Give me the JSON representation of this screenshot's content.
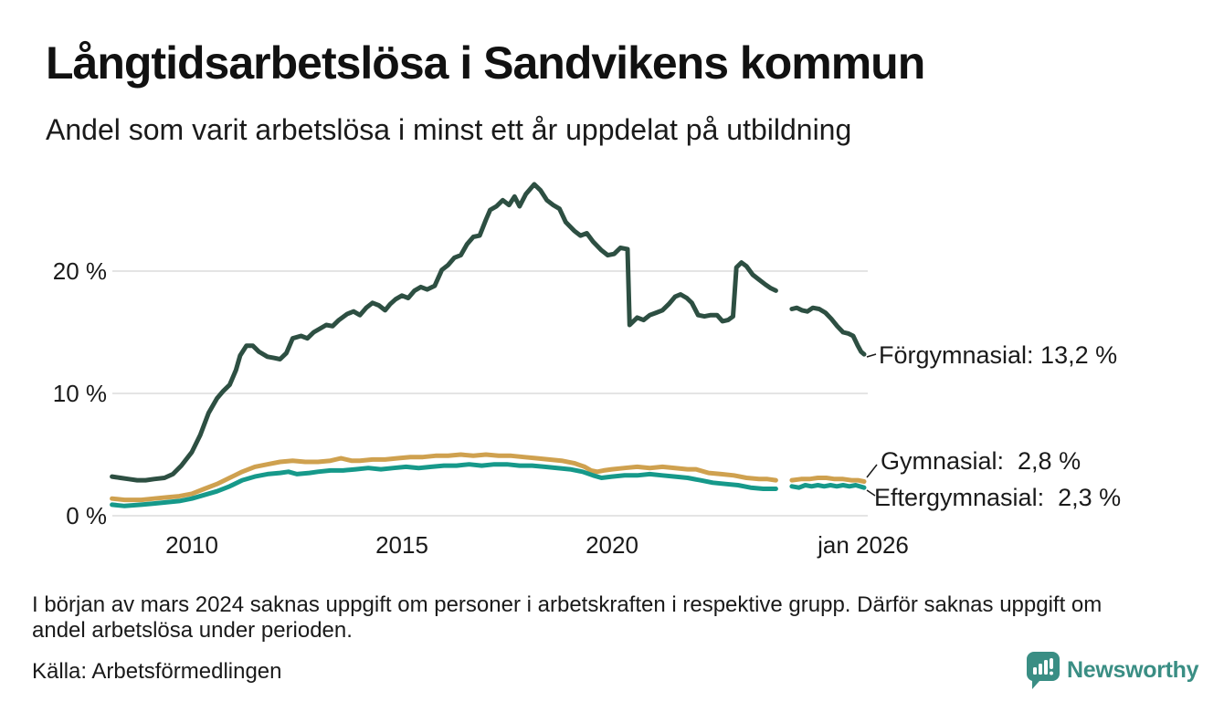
{
  "header": {
    "title": "Långtidsarbetslösa i Sandvikens kommun",
    "subtitle": "Andel som varit arbetslösa i minst ett år uppdelat på utbildning"
  },
  "footer": {
    "note_line1": "I början av mars 2024 saknas uppgift om personer i arbetskraften i respektive grupp. Därför saknas uppgift om",
    "note_line2": "andel arbetslösa under perioden.",
    "source": "Källa: Arbetsförmedlingen"
  },
  "branding": {
    "logo_text": "Newsworthy",
    "logo_color": "#3a8e84",
    "logo_icon": "newsworthy-speech-bubble-bar-chart-icon"
  },
  "chart_data": {
    "type": "line",
    "title": "Långtidsarbetslösa i Sandvikens kommun",
    "subtitle": "Andel som varit arbetslösa i minst ett år uppdelat på utbildning",
    "xlabel": "",
    "ylabel": "",
    "xlim": [
      2008.1,
      2026.0
    ],
    "ylim": [
      0,
      28.5
    ],
    "grid": "horizontal",
    "grid_color": "#e4e4e4",
    "legend_position": "end-of-line-labels",
    "data_gap_x": [
      2023.9,
      2024.28
    ],
    "y_ticks": [
      {
        "value": 20,
        "label": "20 %"
      },
      {
        "value": 10,
        "label": "10 %"
      },
      {
        "value": 0,
        "label": "0 %"
      }
    ],
    "x_ticks": [
      {
        "year": 2010,
        "label": "2010"
      },
      {
        "year": 2015,
        "label": "2015"
      },
      {
        "year": 2020,
        "label": "2020"
      },
      {
        "year": 2026,
        "label": "jan 2026"
      }
    ],
    "series": [
      {
        "name": "Förgymnasial",
        "color": "#2d4f42",
        "end_value": "13,2 %",
        "end_label": "Förgymnasial: 13,2 %",
        "segments": [
          [
            [
              2008.1,
              3.2
            ],
            [
              2008.3,
              3.1
            ],
            [
              2008.5,
              3.0
            ],
            [
              2008.7,
              2.9
            ],
            [
              2008.9,
              2.9
            ],
            [
              2009.1,
              3.0
            ],
            [
              2009.35,
              3.1
            ],
            [
              2009.55,
              3.4
            ],
            [
              2009.75,
              4.1
            ],
            [
              2010.0,
              5.2
            ],
            [
              2010.2,
              6.6
            ],
            [
              2010.4,
              8.4
            ],
            [
              2010.6,
              9.6
            ],
            [
              2010.75,
              10.2
            ],
            [
              2010.9,
              10.7
            ],
            [
              2011.05,
              11.9
            ],
            [
              2011.15,
              13.1
            ],
            [
              2011.3,
              13.9
            ],
            [
              2011.45,
              13.9
            ],
            [
              2011.6,
              13.4
            ],
            [
              2011.8,
              13.0
            ],
            [
              2011.95,
              12.9
            ],
            [
              2012.1,
              12.8
            ],
            [
              2012.25,
              13.3
            ],
            [
              2012.4,
              14.5
            ],
            [
              2012.6,
              14.7
            ],
            [
              2012.75,
              14.5
            ],
            [
              2012.9,
              15.0
            ],
            [
              2013.05,
              15.3
            ],
            [
              2013.2,
              15.6
            ],
            [
              2013.35,
              15.5
            ],
            [
              2013.5,
              16.0
            ],
            [
              2013.7,
              16.5
            ],
            [
              2013.85,
              16.7
            ],
            [
              2014.0,
              16.4
            ],
            [
              2014.15,
              17.0
            ],
            [
              2014.3,
              17.4
            ],
            [
              2014.45,
              17.2
            ],
            [
              2014.6,
              16.8
            ],
            [
              2014.72,
              17.3
            ],
            [
              2014.85,
              17.7
            ],
            [
              2015.0,
              18.0
            ],
            [
              2015.15,
              17.8
            ],
            [
              2015.3,
              18.4
            ],
            [
              2015.45,
              18.7
            ],
            [
              2015.6,
              18.5
            ],
            [
              2015.78,
              18.8
            ],
            [
              2015.95,
              20.1
            ],
            [
              2016.1,
              20.5
            ],
            [
              2016.25,
              21.1
            ],
            [
              2016.4,
              21.3
            ],
            [
              2016.55,
              22.2
            ],
            [
              2016.7,
              22.8
            ],
            [
              2016.85,
              22.9
            ],
            [
              2017.0,
              24.2
            ],
            [
              2017.1,
              25.0
            ],
            [
              2017.25,
              25.3
            ],
            [
              2017.4,
              25.8
            ],
            [
              2017.55,
              25.4
            ],
            [
              2017.68,
              26.1
            ],
            [
              2017.8,
              25.3
            ],
            [
              2017.95,
              26.3
            ],
            [
              2018.15,
              27.1
            ],
            [
              2018.3,
              26.6
            ],
            [
              2018.45,
              25.8
            ],
            [
              2018.6,
              25.4
            ],
            [
              2018.75,
              25.1
            ],
            [
              2018.9,
              24.0
            ],
            [
              2019.1,
              23.3
            ],
            [
              2019.25,
              22.9
            ],
            [
              2019.4,
              23.1
            ],
            [
              2019.55,
              22.4
            ],
            [
              2019.75,
              21.7
            ],
            [
              2019.9,
              21.3
            ],
            [
              2020.05,
              21.4
            ],
            [
              2020.2,
              21.9
            ],
            [
              2020.37,
              21.8
            ],
            [
              2020.42,
              15.6
            ],
            [
              2020.6,
              16.2
            ],
            [
              2020.75,
              16.0
            ],
            [
              2020.9,
              16.4
            ],
            [
              2021.05,
              16.6
            ],
            [
              2021.2,
              16.8
            ],
            [
              2021.35,
              17.3
            ],
            [
              2021.5,
              17.9
            ],
            [
              2021.63,
              18.1
            ],
            [
              2021.78,
              17.8
            ],
            [
              2021.9,
              17.4
            ],
            [
              2022.05,
              16.4
            ],
            [
              2022.2,
              16.3
            ],
            [
              2022.35,
              16.4
            ],
            [
              2022.5,
              16.4
            ],
            [
              2022.63,
              15.9
            ],
            [
              2022.76,
              16.0
            ],
            [
              2022.88,
              16.3
            ],
            [
              2022.96,
              20.3
            ],
            [
              2023.08,
              20.7
            ],
            [
              2023.2,
              20.4
            ],
            [
              2023.35,
              19.7
            ],
            [
              2023.5,
              19.3
            ],
            [
              2023.65,
              18.9
            ],
            [
              2023.78,
              18.6
            ],
            [
              2023.9,
              18.4
            ]
          ],
          [
            [
              2024.28,
              16.9
            ],
            [
              2024.4,
              17.0
            ],
            [
              2024.52,
              16.8
            ],
            [
              2024.65,
              16.7
            ],
            [
              2024.78,
              17.0
            ],
            [
              2024.93,
              16.9
            ],
            [
              2025.08,
              16.6
            ],
            [
              2025.22,
              16.1
            ],
            [
              2025.36,
              15.5
            ],
            [
              2025.5,
              15.0
            ],
            [
              2025.62,
              14.9
            ],
            [
              2025.74,
              14.7
            ],
            [
              2025.85,
              13.9
            ],
            [
              2025.93,
              13.4
            ],
            [
              2026.0,
              13.2
            ]
          ]
        ]
      },
      {
        "name": "Gymnasial",
        "color": "#cfa14f",
        "end_value": "2,8 %",
        "end_label": "Gymnasial:  2,8 %",
        "segments": [
          [
            [
              2008.1,
              1.4
            ],
            [
              2008.4,
              1.3
            ],
            [
              2008.8,
              1.3
            ],
            [
              2009.1,
              1.4
            ],
            [
              2009.4,
              1.5
            ],
            [
              2009.7,
              1.6
            ],
            [
              2010.0,
              1.8
            ],
            [
              2010.3,
              2.2
            ],
            [
              2010.6,
              2.6
            ],
            [
              2010.9,
              3.1
            ],
            [
              2011.2,
              3.6
            ],
            [
              2011.5,
              4.0
            ],
            [
              2011.8,
              4.2
            ],
            [
              2012.1,
              4.4
            ],
            [
              2012.4,
              4.5
            ],
            [
              2012.7,
              4.4
            ],
            [
              2013.0,
              4.4
            ],
            [
              2013.3,
              4.5
            ],
            [
              2013.55,
              4.7
            ],
            [
              2013.8,
              4.5
            ],
            [
              2014.0,
              4.5
            ],
            [
              2014.3,
              4.6
            ],
            [
              2014.6,
              4.6
            ],
            [
              2014.9,
              4.7
            ],
            [
              2015.2,
              4.8
            ],
            [
              2015.5,
              4.8
            ],
            [
              2015.8,
              4.9
            ],
            [
              2016.1,
              4.9
            ],
            [
              2016.4,
              5.0
            ],
            [
              2016.7,
              4.9
            ],
            [
              2017.0,
              5.0
            ],
            [
              2017.3,
              4.9
            ],
            [
              2017.6,
              4.9
            ],
            [
              2017.9,
              4.8
            ],
            [
              2018.2,
              4.7
            ],
            [
              2018.5,
              4.6
            ],
            [
              2018.8,
              4.5
            ],
            [
              2019.1,
              4.3
            ],
            [
              2019.35,
              4.0
            ],
            [
              2019.5,
              3.7
            ],
            [
              2019.65,
              3.6
            ],
            [
              2019.8,
              3.7
            ],
            [
              2020.0,
              3.8
            ],
            [
              2020.3,
              3.9
            ],
            [
              2020.6,
              4.0
            ],
            [
              2020.9,
              3.9
            ],
            [
              2021.2,
              4.0
            ],
            [
              2021.5,
              3.9
            ],
            [
              2021.8,
              3.8
            ],
            [
              2022.0,
              3.8
            ],
            [
              2022.3,
              3.5
            ],
            [
              2022.6,
              3.4
            ],
            [
              2022.9,
              3.3
            ],
            [
              2023.2,
              3.1
            ],
            [
              2023.5,
              3.0
            ],
            [
              2023.7,
              3.0
            ],
            [
              2023.9,
              2.9
            ]
          ],
          [
            [
              2024.28,
              2.9
            ],
            [
              2024.5,
              3.0
            ],
            [
              2024.7,
              3.0
            ],
            [
              2024.9,
              3.1
            ],
            [
              2025.1,
              3.1
            ],
            [
              2025.3,
              3.0
            ],
            [
              2025.5,
              3.0
            ],
            [
              2025.7,
              2.9
            ],
            [
              2025.85,
              2.9
            ],
            [
              2026.0,
              2.8
            ]
          ]
        ]
      },
      {
        "name": "Eftergymnasial",
        "color": "#16998a",
        "end_value": "2,3 %",
        "end_label": "Eftergymnasial:  2,3 %",
        "segments": [
          [
            [
              2008.1,
              0.9
            ],
            [
              2008.4,
              0.8
            ],
            [
              2008.8,
              0.9
            ],
            [
              2009.1,
              1.0
            ],
            [
              2009.4,
              1.1
            ],
            [
              2009.7,
              1.2
            ],
            [
              2010.0,
              1.4
            ],
            [
              2010.3,
              1.7
            ],
            [
              2010.6,
              2.0
            ],
            [
              2010.9,
              2.4
            ],
            [
              2011.2,
              2.9
            ],
            [
              2011.5,
              3.2
            ],
            [
              2011.8,
              3.4
            ],
            [
              2012.1,
              3.5
            ],
            [
              2012.3,
              3.6
            ],
            [
              2012.5,
              3.4
            ],
            [
              2012.8,
              3.5
            ],
            [
              2013.0,
              3.6
            ],
            [
              2013.3,
              3.7
            ],
            [
              2013.6,
              3.7
            ],
            [
              2013.9,
              3.8
            ],
            [
              2014.2,
              3.9
            ],
            [
              2014.5,
              3.8
            ],
            [
              2014.8,
              3.9
            ],
            [
              2015.1,
              4.0
            ],
            [
              2015.4,
              3.9
            ],
            [
              2015.7,
              4.0
            ],
            [
              2016.0,
              4.1
            ],
            [
              2016.3,
              4.1
            ],
            [
              2016.6,
              4.2
            ],
            [
              2016.9,
              4.1
            ],
            [
              2017.2,
              4.2
            ],
            [
              2017.5,
              4.2
            ],
            [
              2017.8,
              4.1
            ],
            [
              2018.1,
              4.1
            ],
            [
              2018.4,
              4.0
            ],
            [
              2018.7,
              3.9
            ],
            [
              2019.0,
              3.8
            ],
            [
              2019.3,
              3.6
            ],
            [
              2019.55,
              3.3
            ],
            [
              2019.75,
              3.1
            ],
            [
              2020.0,
              3.2
            ],
            [
              2020.3,
              3.3
            ],
            [
              2020.6,
              3.3
            ],
            [
              2020.9,
              3.4
            ],
            [
              2021.2,
              3.3
            ],
            [
              2021.5,
              3.2
            ],
            [
              2021.8,
              3.1
            ],
            [
              2022.1,
              2.9
            ],
            [
              2022.4,
              2.7
            ],
            [
              2022.7,
              2.6
            ],
            [
              2023.0,
              2.5
            ],
            [
              2023.3,
              2.3
            ],
            [
              2023.6,
              2.2
            ],
            [
              2023.9,
              2.2
            ]
          ],
          [
            [
              2024.28,
              2.4
            ],
            [
              2024.45,
              2.3
            ],
            [
              2024.6,
              2.5
            ],
            [
              2024.75,
              2.4
            ],
            [
              2024.9,
              2.5
            ],
            [
              2025.05,
              2.4
            ],
            [
              2025.2,
              2.5
            ],
            [
              2025.35,
              2.4
            ],
            [
              2025.5,
              2.5
            ],
            [
              2025.65,
              2.4
            ],
            [
              2025.8,
              2.5
            ],
            [
              2026.0,
              2.3
            ]
          ]
        ]
      }
    ]
  }
}
